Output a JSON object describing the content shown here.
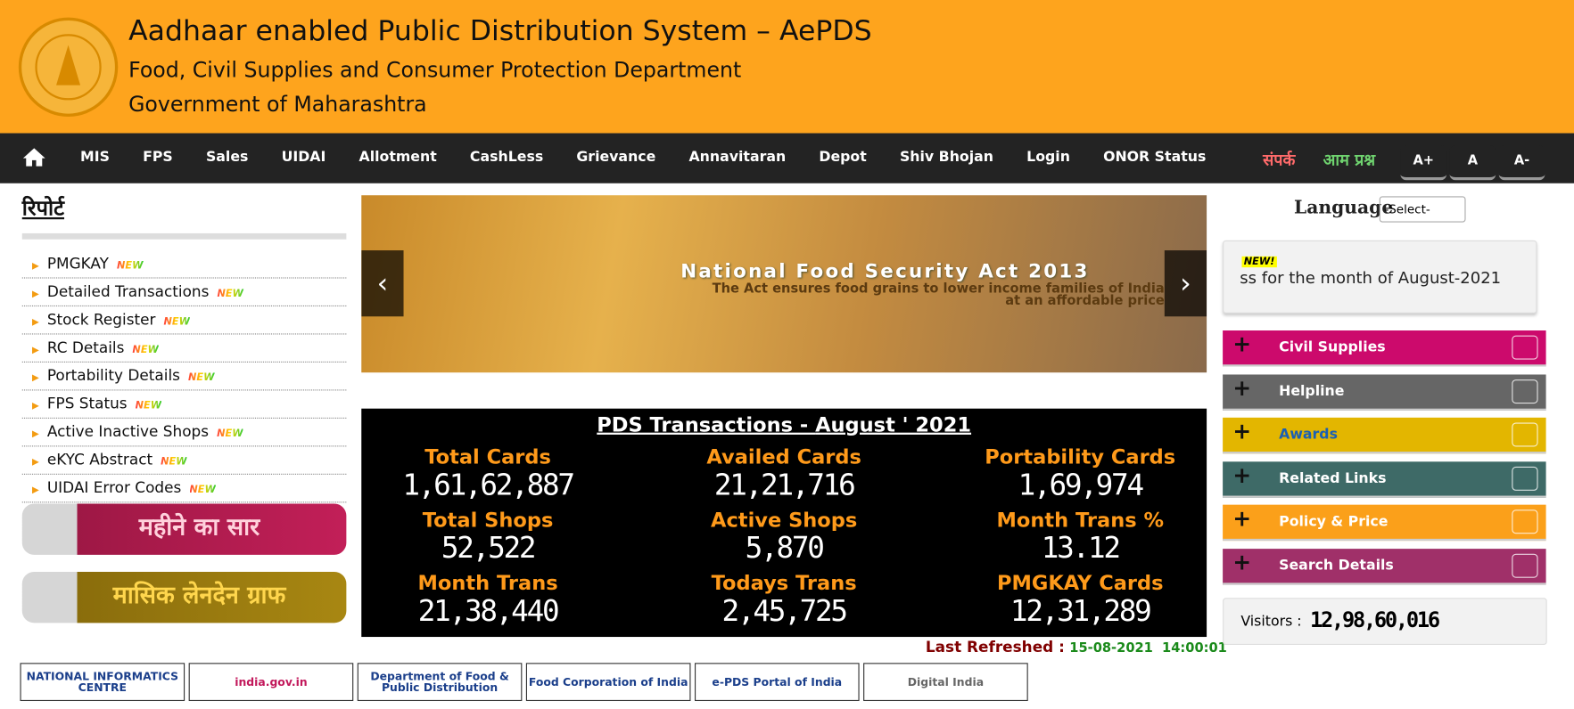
{
  "header": {
    "title": "Aadhaar enabled Public Distribution System – AePDS",
    "subtitle": "Food, Civil Supplies and Consumer Protection Department",
    "government": "Government of Maharashtra"
  },
  "nav": {
    "items": [
      "MIS",
      "FPS",
      "Sales",
      "UIDAI",
      "Allotment",
      "CashLess",
      "Grievance",
      "Annavitaran",
      "Depot",
      "Shiv Bhojan",
      "Login",
      "ONOR Status"
    ],
    "contact": "संपर्क",
    "faq": "आम प्रश्न",
    "font_buttons": [
      "A+",
      "A",
      "A-"
    ]
  },
  "reports": {
    "title": "रिपोर्ट",
    "new_badge": "NEW",
    "items": [
      "PMGKAY",
      "Detailed Transactions",
      "Stock Register",
      "RC Details",
      "Portability Details",
      "FPS Status",
      "Active Inactive Shops",
      "eKYC Abstract",
      "UIDAI Error Codes"
    ],
    "banners": [
      "महीने का सार",
      "मासिक लेनदेन ग्राफ"
    ]
  },
  "carousel": {
    "heading": "National Food Security Act 2013",
    "text": "The Act ensures food grains to lower income families of India at an affordable price"
  },
  "transactions": {
    "title": "PDS Transactions - ",
    "period": "August ' 2021",
    "stats": [
      {
        "label": "Total Cards",
        "value": "1,61,62,887"
      },
      {
        "label": "Availed Cards",
        "value": "21,21,716"
      },
      {
        "label": "Portability Cards",
        "value": "1,69,974"
      },
      {
        "label": "Total Shops",
        "value": "52,522"
      },
      {
        "label": "Active Shops",
        "value": "5,870"
      },
      {
        "label": "Month Trans %",
        "value": "13.12"
      },
      {
        "label": "Month Trans",
        "value": "21,38,440"
      },
      {
        "label": "Todays Trans",
        "value": "2,45,725"
      },
      {
        "label": "PMGKAY Cards",
        "value": "12,31,289"
      }
    ],
    "refreshed_label": "Last Refreshed :",
    "refreshed_value": "15-08-2021  14:00:01"
  },
  "sidebar": {
    "language_label": "Language",
    "language_select": "-Select-",
    "notice_badge": "NEW!",
    "notice_text": "ss for the month of August-2021",
    "links": [
      "Civil Supplies",
      "Helpline",
      "Awards",
      "Related Links",
      "Policy & Price",
      "Search Details"
    ],
    "visitors_label": "Visitors :",
    "visitors_count": "12,98,60,016"
  },
  "footer": {
    "logos": [
      "NATIONAL INFORMATICS CENTRE",
      "india.gov.in",
      "Department of Food & Public Distribution",
      "Food Corporation of India",
      "e-PDS Portal of India",
      "Digital India"
    ]
  }
}
